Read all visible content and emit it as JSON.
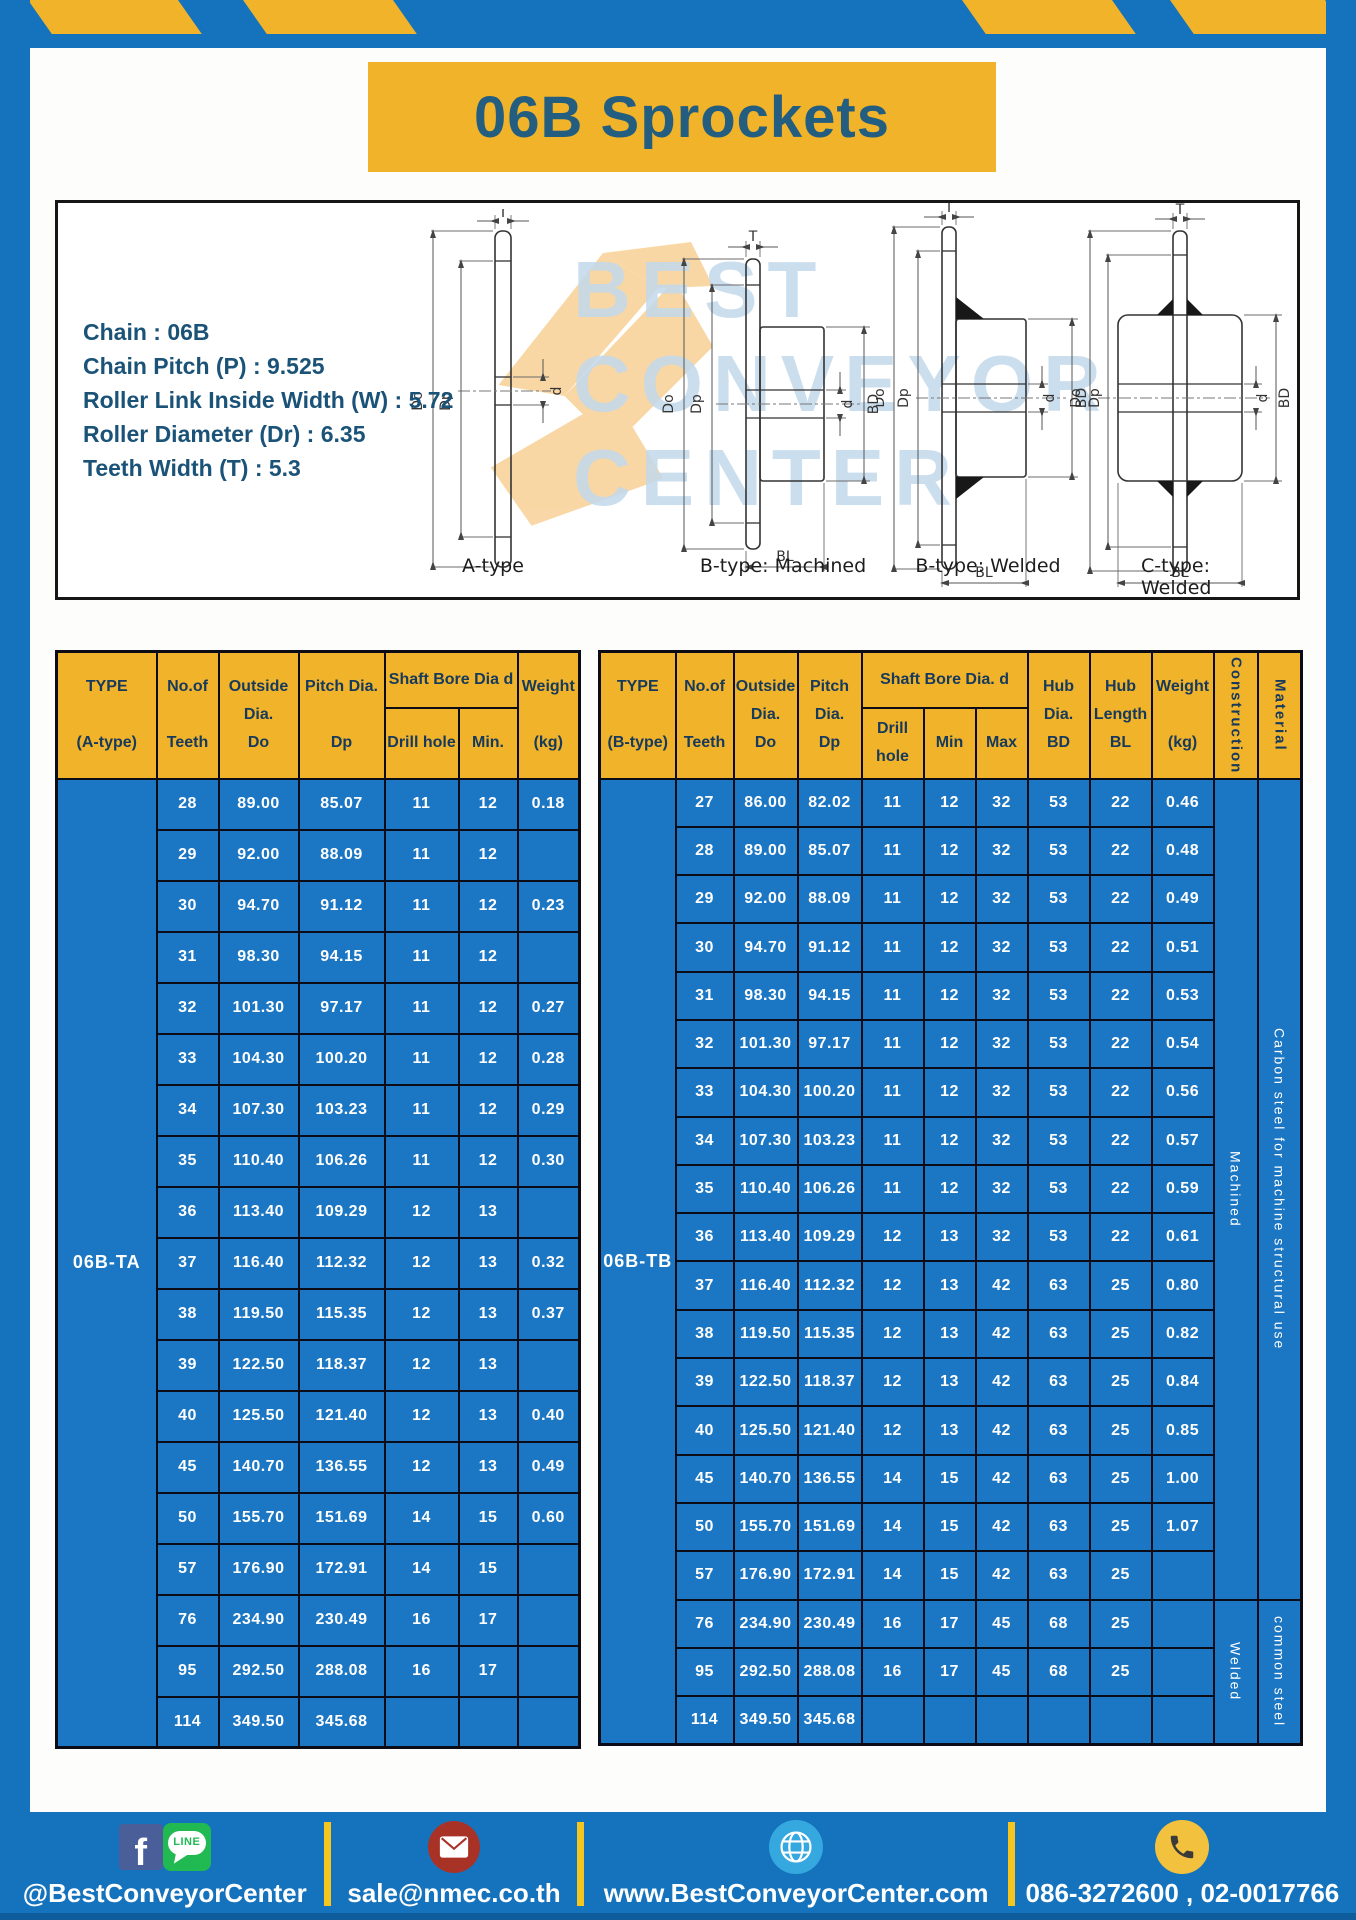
{
  "page": {
    "title": "06B Sprockets"
  },
  "colors": {
    "frame_blue": "#1573BD",
    "cell_blue": "#1B76C3",
    "header_amber": "#F0B32A",
    "header_text_navy": "#16395C",
    "title_text": "#235E80",
    "footer_separator_yellow": "#F5C71E"
  },
  "specs": {
    "lines": [
      "Chain : 06B",
      "Chain Pitch (P) : 9.525",
      "Roller Link Inside Width (W) : 5.72",
      "Roller Diameter (Dr) : 6.35",
      "Teeth Width (T) : 5.3"
    ]
  },
  "watermark": {
    "line1": "BEST",
    "line2": "CONVEYOR",
    "line3": "CENTER"
  },
  "diagram": {
    "labels": [
      "A-type",
      "B-type: Machined",
      "B-type: Welded",
      "C-type: Welded"
    ],
    "dims": {
      "T": "T",
      "Do": "Do",
      "Dp": "Dp",
      "d": "d",
      "BD": "BD",
      "BL": "BL"
    }
  },
  "table_a": {
    "headers": {
      "type": "TYPE\n\n(A-type)",
      "teeth": "No.of\n\nTeeth",
      "outside": "Outside\nDia.\nDo",
      "pitch": "Pitch Dia.\n\nDp",
      "shaft": "Shaft Bore Dia d",
      "drill": "Drill hole",
      "min": "Min.",
      "weight": "Weight\n\n(kg)"
    },
    "type_value": "06B-TA",
    "rows": [
      [
        "28",
        "89.00",
        "85.07",
        "11",
        "12",
        "0.18"
      ],
      [
        "29",
        "92.00",
        "88.09",
        "11",
        "12",
        ""
      ],
      [
        "30",
        "94.70",
        "91.12",
        "11",
        "12",
        "0.23"
      ],
      [
        "31",
        "98.30",
        "94.15",
        "11",
        "12",
        ""
      ],
      [
        "32",
        "101.30",
        "97.17",
        "11",
        "12",
        "0.27"
      ],
      [
        "33",
        "104.30",
        "100.20",
        "11",
        "12",
        "0.28"
      ],
      [
        "34",
        "107.30",
        "103.23",
        "11",
        "12",
        "0.29"
      ],
      [
        "35",
        "110.40",
        "106.26",
        "11",
        "12",
        "0.30"
      ],
      [
        "36",
        "113.40",
        "109.29",
        "12",
        "13",
        ""
      ],
      [
        "37",
        "116.40",
        "112.32",
        "12",
        "13",
        "0.32"
      ],
      [
        "38",
        "119.50",
        "115.35",
        "12",
        "13",
        "0.37"
      ],
      [
        "39",
        "122.50",
        "118.37",
        "12",
        "13",
        ""
      ],
      [
        "40",
        "125.50",
        "121.40",
        "12",
        "13",
        "0.40"
      ],
      [
        "45",
        "140.70",
        "136.55",
        "12",
        "13",
        "0.49"
      ],
      [
        "50",
        "155.70",
        "151.69",
        "14",
        "15",
        "0.60"
      ],
      [
        "57",
        "176.90",
        "172.91",
        "14",
        "15",
        ""
      ],
      [
        "76",
        "234.90",
        "230.49",
        "16",
        "17",
        ""
      ],
      [
        "95",
        "292.50",
        "288.08",
        "16",
        "17",
        ""
      ],
      [
        "114",
        "349.50",
        "345.68",
        "",
        "",
        ""
      ]
    ]
  },
  "table_b": {
    "headers": {
      "type": "TYPE\n\n(B-type)",
      "teeth": "No.of\n\nTeeth",
      "outside": "Outside\nDia.\nDo",
      "pitch": "Pitch\nDia.\nDp",
      "shaft": "Shaft Bore Dia. d",
      "drill": "Drill hole",
      "min": "Min",
      "max": "Max",
      "hub_dia": "Hub\nDia.\nBD",
      "hub_len": "Hub\nLength\nBL",
      "weight": "Weight\n\n(kg)",
      "construction": "Construction",
      "material": "Material"
    },
    "type_value": "06B-TB",
    "rows": [
      [
        "27",
        "86.00",
        "82.02",
        "11",
        "12",
        "32",
        "53",
        "22",
        "0.46"
      ],
      [
        "28",
        "89.00",
        "85.07",
        "11",
        "12",
        "32",
        "53",
        "22",
        "0.48"
      ],
      [
        "29",
        "92.00",
        "88.09",
        "11",
        "12",
        "32",
        "53",
        "22",
        "0.49"
      ],
      [
        "30",
        "94.70",
        "91.12",
        "11",
        "12",
        "32",
        "53",
        "22",
        "0.51"
      ],
      [
        "31",
        "98.30",
        "94.15",
        "11",
        "12",
        "32",
        "53",
        "22",
        "0.53"
      ],
      [
        "32",
        "101.30",
        "97.17",
        "11",
        "12",
        "32",
        "53",
        "22",
        "0.54"
      ],
      [
        "33",
        "104.30",
        "100.20",
        "11",
        "12",
        "32",
        "53",
        "22",
        "0.56"
      ],
      [
        "34",
        "107.30",
        "103.23",
        "11",
        "12",
        "32",
        "53",
        "22",
        "0.57"
      ],
      [
        "35",
        "110.40",
        "106.26",
        "11",
        "12",
        "32",
        "53",
        "22",
        "0.59"
      ],
      [
        "36",
        "113.40",
        "109.29",
        "12",
        "13",
        "32",
        "53",
        "22",
        "0.61"
      ],
      [
        "37",
        "116.40",
        "112.32",
        "12",
        "13",
        "42",
        "63",
        "25",
        "0.80"
      ],
      [
        "38",
        "119.50",
        "115.35",
        "12",
        "13",
        "42",
        "63",
        "25",
        "0.82"
      ],
      [
        "39",
        "122.50",
        "118.37",
        "12",
        "13",
        "42",
        "63",
        "25",
        "0.84"
      ],
      [
        "40",
        "125.50",
        "121.40",
        "12",
        "13",
        "42",
        "63",
        "25",
        "0.85"
      ],
      [
        "45",
        "140.70",
        "136.55",
        "14",
        "15",
        "42",
        "63",
        "25",
        "1.00"
      ],
      [
        "50",
        "155.70",
        "151.69",
        "14",
        "15",
        "42",
        "63",
        "25",
        "1.07"
      ],
      [
        "57",
        "176.90",
        "172.91",
        "14",
        "15",
        "42",
        "63",
        "25",
        ""
      ],
      [
        "76",
        "234.90",
        "230.49",
        "16",
        "17",
        "45",
        "68",
        "25",
        ""
      ],
      [
        "95",
        "292.50",
        "288.08",
        "16",
        "17",
        "45",
        "68",
        "25",
        ""
      ],
      [
        "114",
        "349.50",
        "345.68",
        "",
        "",
        "",
        "",
        "",
        ""
      ]
    ],
    "construction_groups": [
      {
        "label": "Machined",
        "span": 17
      },
      {
        "label": "Welded",
        "span": 3
      }
    ],
    "material_groups": [
      {
        "label": "Carbon steel for machine structural use",
        "span": 17
      },
      {
        "label": "common steel",
        "span": 3
      }
    ]
  },
  "footer": {
    "line_label": "LINE",
    "facebook_f": "f",
    "sections": [
      {
        "name": "social",
        "text": "@BestConveyorCenter"
      },
      {
        "name": "email",
        "text": "sale@nmec.co.th"
      },
      {
        "name": "website",
        "text": "www.BestConveyorCenter.com"
      },
      {
        "name": "phone",
        "text": "086-3272600 , 02-0017766"
      }
    ]
  }
}
